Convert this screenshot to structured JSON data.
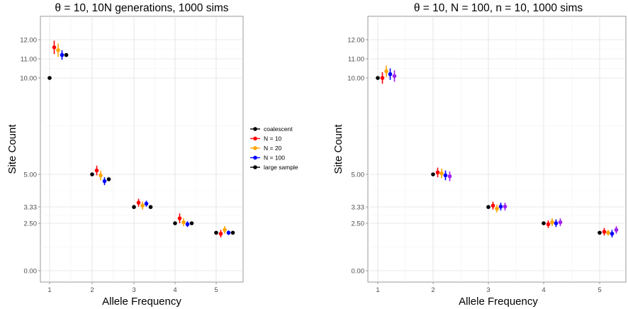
{
  "chart_data": [
    {
      "type": "scatter",
      "title": "θ = 10, 10N generations, 1000 sims",
      "xlabel": "Allele Frequency",
      "ylabel": "Site Count",
      "x_ticks": [
        "1",
        "2",
        "3",
        "4",
        "5"
      ],
      "y_ticks": [
        "0.00",
        "2.50",
        "3.33",
        "5.00",
        "10.00",
        "11.00",
        "12.00"
      ],
      "grid": true,
      "series": [
        {
          "name": "coalescent",
          "color": "#000000",
          "points": [
            {
              "x": 1,
              "y": 10.0,
              "lo": 10.0,
              "hi": 10.0
            },
            {
              "x": 2,
              "y": 5.0,
              "lo": 5.0,
              "hi": 5.0
            },
            {
              "x": 3,
              "y": 3.33,
              "lo": 3.33,
              "hi": 3.33
            },
            {
              "x": 4,
              "y": 2.5,
              "lo": 2.5,
              "hi": 2.5
            },
            {
              "x": 5,
              "y": 2.0,
              "lo": 2.0,
              "hi": 2.0
            }
          ]
        },
        {
          "name": "N = 10",
          "color": "#ff0000",
          "points": [
            {
              "x": 1,
              "y": 11.6,
              "lo": 11.25,
              "hi": 11.95
            },
            {
              "x": 2,
              "y": 5.2,
              "lo": 4.95,
              "hi": 5.45
            },
            {
              "x": 3,
              "y": 3.55,
              "lo": 3.35,
              "hi": 3.75
            },
            {
              "x": 4,
              "y": 2.75,
              "lo": 2.5,
              "hi": 3.0
            },
            {
              "x": 5,
              "y": 1.95,
              "lo": 1.75,
              "hi": 2.15
            }
          ]
        },
        {
          "name": "N = 20",
          "color": "#ffa500",
          "points": [
            {
              "x": 1,
              "y": 11.45,
              "lo": 11.1,
              "hi": 11.8
            },
            {
              "x": 2,
              "y": 4.95,
              "lo": 4.7,
              "hi": 5.2
            },
            {
              "x": 3,
              "y": 3.4,
              "lo": 3.2,
              "hi": 3.6
            },
            {
              "x": 4,
              "y": 2.55,
              "lo": 2.35,
              "hi": 2.75
            },
            {
              "x": 5,
              "y": 2.15,
              "lo": 1.95,
              "hi": 2.35
            }
          ]
        },
        {
          "name": "N = 100",
          "color": "#0000ff",
          "points": [
            {
              "x": 1,
              "y": 11.2,
              "lo": 10.95,
              "hi": 11.45
            },
            {
              "x": 2,
              "y": 4.65,
              "lo": 4.45,
              "hi": 4.85
            },
            {
              "x": 3,
              "y": 3.5,
              "lo": 3.35,
              "hi": 3.65
            },
            {
              "x": 4,
              "y": 2.45,
              "lo": 2.3,
              "hi": 2.6
            },
            {
              "x": 5,
              "y": 2.0,
              "lo": 1.88,
              "hi": 2.12
            }
          ]
        },
        {
          "name": "large sample",
          "color": "#000000",
          "points": [
            {
              "x": 1,
              "y": 11.2,
              "lo": 11.2,
              "hi": 11.2
            },
            {
              "x": 2,
              "y": 4.75,
              "lo": 4.75,
              "hi": 4.75
            },
            {
              "x": 3,
              "y": 3.33,
              "lo": 3.33,
              "hi": 3.33
            },
            {
              "x": 4,
              "y": 2.5,
              "lo": 2.5,
              "hi": 2.5
            },
            {
              "x": 5,
              "y": 2.0,
              "lo": 2.0,
              "hi": 2.0
            }
          ]
        }
      ],
      "legend": {
        "position": "right",
        "entries": [
          "coalescent",
          "N = 10",
          "N = 20",
          "N = 100",
          "large sample"
        ]
      }
    },
    {
      "type": "scatter",
      "title": "θ = 10, N = 100, n = 10, 1000 sims",
      "xlabel": "Allele Frequency",
      "ylabel": "Site Count",
      "x_ticks": [
        "1",
        "2",
        "3",
        "4",
        "5"
      ],
      "y_ticks": [
        "0.00",
        "2.50",
        "3.33",
        "5.00",
        "10.00",
        "11.00",
        "12.00"
      ],
      "grid": true,
      "series": [
        {
          "color": "#000000",
          "points": [
            {
              "x": 1,
              "y": 10.0,
              "lo": 10.0,
              "hi": 10.0
            },
            {
              "x": 2,
              "y": 5.0,
              "lo": 5.0,
              "hi": 5.0
            },
            {
              "x": 3,
              "y": 3.33,
              "lo": 3.33,
              "hi": 3.33
            },
            {
              "x": 4,
              "y": 2.5,
              "lo": 2.5,
              "hi": 2.5
            },
            {
              "x": 5,
              "y": 2.0,
              "lo": 2.0,
              "hi": 2.0
            }
          ]
        },
        {
          "color": "#ff0000",
          "points": [
            {
              "x": 1,
              "y": 10.0,
              "lo": 9.7,
              "hi": 10.3
            },
            {
              "x": 2,
              "y": 5.1,
              "lo": 4.85,
              "hi": 5.35
            },
            {
              "x": 3,
              "y": 3.4,
              "lo": 3.2,
              "hi": 3.6
            },
            {
              "x": 4,
              "y": 2.45,
              "lo": 2.25,
              "hi": 2.65
            },
            {
              "x": 5,
              "y": 2.05,
              "lo": 1.85,
              "hi": 2.25
            }
          ]
        },
        {
          "color": "#ffa500",
          "points": [
            {
              "x": 1,
              "y": 10.35,
              "lo": 10.05,
              "hi": 10.65
            },
            {
              "x": 2,
              "y": 5.05,
              "lo": 4.8,
              "hi": 5.3
            },
            {
              "x": 3,
              "y": 3.25,
              "lo": 3.05,
              "hi": 3.45
            },
            {
              "x": 4,
              "y": 2.55,
              "lo": 2.35,
              "hi": 2.75
            },
            {
              "x": 5,
              "y": 2.0,
              "lo": 1.85,
              "hi": 2.15
            }
          ]
        },
        {
          "color": "#0000ff",
          "points": [
            {
              "x": 1,
              "y": 10.2,
              "lo": 9.9,
              "hi": 10.5
            },
            {
              "x": 2,
              "y": 4.95,
              "lo": 4.7,
              "hi": 5.2
            },
            {
              "x": 3,
              "y": 3.35,
              "lo": 3.15,
              "hi": 3.55
            },
            {
              "x": 4,
              "y": 2.5,
              "lo": 2.3,
              "hi": 2.7
            },
            {
              "x": 5,
              "y": 1.95,
              "lo": 1.75,
              "hi": 2.15
            }
          ]
        },
        {
          "color": "#a020f0",
          "points": [
            {
              "x": 1,
              "y": 10.1,
              "lo": 9.8,
              "hi": 10.4
            },
            {
              "x": 2,
              "y": 4.9,
              "lo": 4.65,
              "hi": 5.15
            },
            {
              "x": 3,
              "y": 3.35,
              "lo": 3.15,
              "hi": 3.55
            },
            {
              "x": 4,
              "y": 2.55,
              "lo": 2.35,
              "hi": 2.75
            },
            {
              "x": 5,
              "y": 2.15,
              "lo": 1.95,
              "hi": 2.35
            }
          ]
        }
      ]
    }
  ]
}
